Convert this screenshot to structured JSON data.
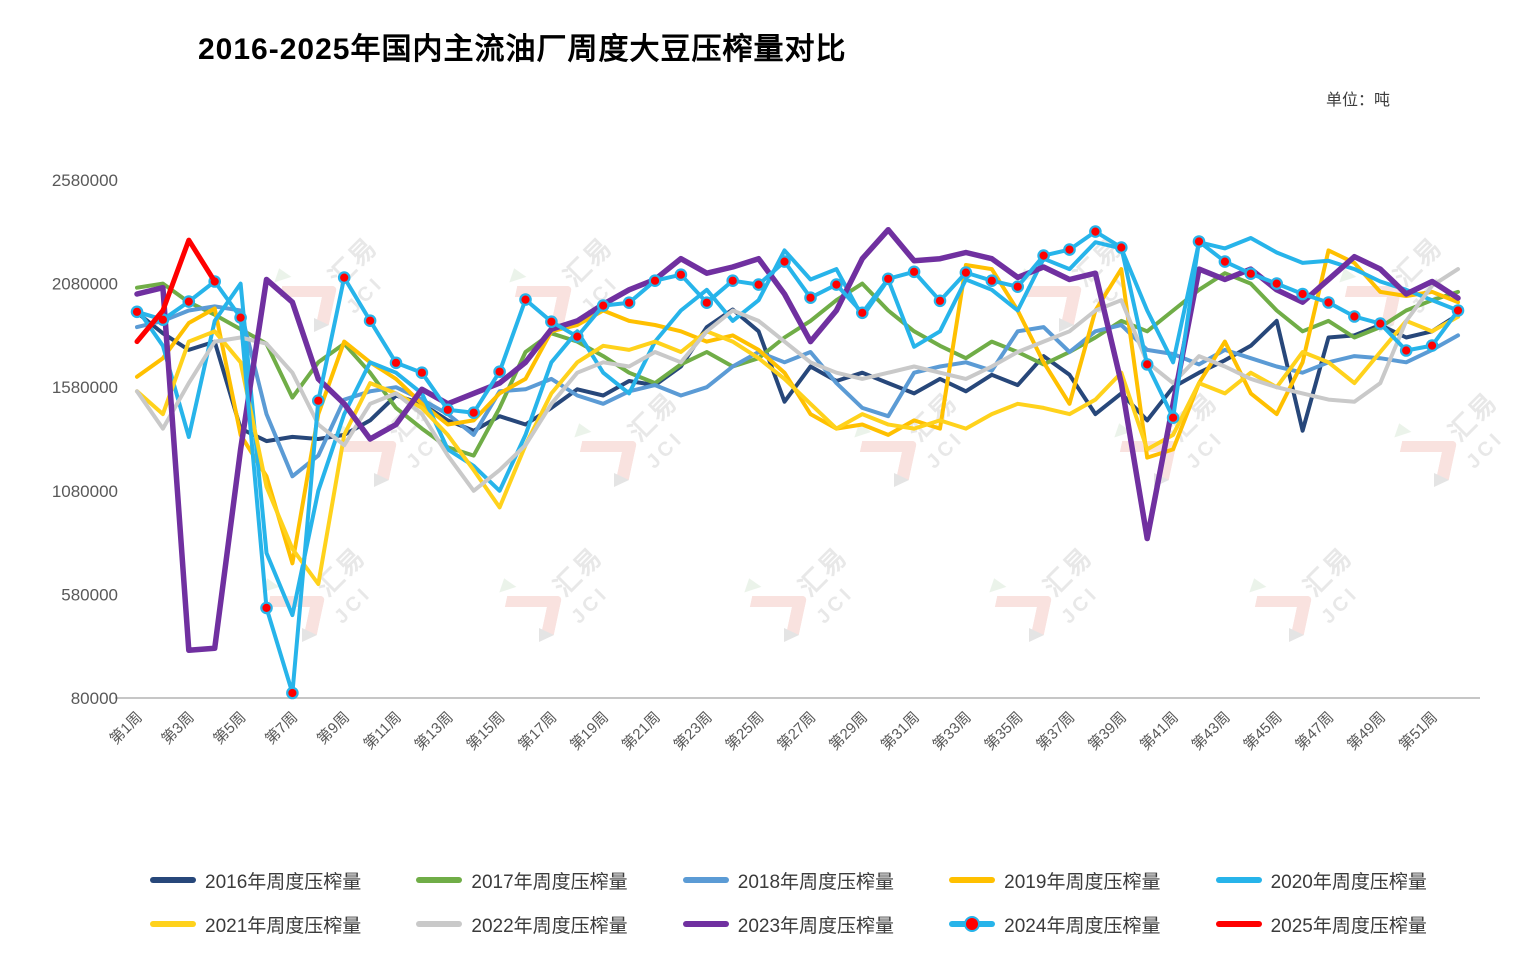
{
  "title": "2016-2025年国内主流油厂周度大豆压榨量对比",
  "unit_label": "单位：吨",
  "watermark": {
    "text_cn": "汇易",
    "text_en": "JCI"
  },
  "chart_data": {
    "type": "line",
    "title": "2016-2025年国内主流油厂周度大豆压榨量对比",
    "xlabel": "",
    "ylabel": "单位：吨",
    "ylim": [
      80000,
      2580000
    ],
    "y_ticks": [
      80000,
      580000,
      1080000,
      1580000,
      2080000,
      2580000
    ],
    "grid": false,
    "legend_position": "bottom",
    "weeks": 52,
    "x_tick_labels": [
      "第1周",
      "第3周",
      "第5周",
      "第7周",
      "第9周",
      "第11周",
      "第13周",
      "第15周",
      "第17周",
      "第19周",
      "第21周",
      "第23周",
      "第25周",
      "第27周",
      "第29周",
      "第31周",
      "第33周",
      "第35周",
      "第37周",
      "第39周",
      "第41周",
      "第43周",
      "第45周",
      "第47周",
      "第49周",
      "第51周"
    ],
    "series": [
      {
        "id": "2016",
        "name": "2016年周度压榨量",
        "color": "#27477A",
        "width": 4,
        "values": [
          1940000,
          1840000,
          1760000,
          1800000,
          1380000,
          1320000,
          1340000,
          1330000,
          1350000,
          1420000,
          1540000,
          1500000,
          1420000,
          1370000,
          1440000,
          1400000,
          1480000,
          1570000,
          1540000,
          1610000,
          1590000,
          1680000,
          1870000,
          1955000,
          1850000,
          1510000,
          1680000,
          1610000,
          1650000,
          1600000,
          1550000,
          1620000,
          1560000,
          1640000,
          1590000,
          1730000,
          1640000,
          1450000,
          1550000,
          1420000,
          1580000,
          1650000,
          1710000,
          1780000,
          1900000,
          1370000,
          1820000,
          1830000,
          1880000,
          1820000,
          1850000,
          1930000
        ]
      },
      {
        "id": "2017",
        "name": "2017年周度压榨量",
        "color": "#70AD47",
        "width": 4,
        "values": [
          2060000,
          2080000,
          1990000,
          1930000,
          1860000,
          1790000,
          1530000,
          1700000,
          1790000,
          1650000,
          1480000,
          1380000,
          1290000,
          1250000,
          1480000,
          1750000,
          1840000,
          1800000,
          1730000,
          1650000,
          1600000,
          1690000,
          1750000,
          1680000,
          1720000,
          1820000,
          1900000,
          2000000,
          2080000,
          1950000,
          1850000,
          1780000,
          1720000,
          1800000,
          1750000,
          1690000,
          1750000,
          1820000,
          1900000,
          1850000,
          1950000,
          2050000,
          2130000,
          2080000,
          1950000,
          1850000,
          1900000,
          1820000,
          1870000,
          1950000,
          2000000,
          2040000
        ]
      },
      {
        "id": "2018",
        "name": "2018年周度压榨量",
        "color": "#5B9BD5",
        "width": 4,
        "values": [
          1870000,
          1900000,
          1950000,
          1970000,
          1950000,
          1450000,
          1150000,
          1250000,
          1520000,
          1560000,
          1580000,
          1520000,
          1450000,
          1350000,
          1560000,
          1570000,
          1620000,
          1540000,
          1500000,
          1560000,
          1590000,
          1540000,
          1580000,
          1680000,
          1750000,
          1700000,
          1750000,
          1600000,
          1480000,
          1440000,
          1650000,
          1680000,
          1700000,
          1660000,
          1850000,
          1870000,
          1750000,
          1850000,
          1880000,
          1760000,
          1740000,
          1690000,
          1760000,
          1720000,
          1680000,
          1650000,
          1700000,
          1730000,
          1720000,
          1700000,
          1760000,
          1830000
        ]
      },
      {
        "id": "2019",
        "name": "2019年周度压榨量",
        "color": "#FFC000",
        "width": 4,
        "values": [
          1630000,
          1720000,
          1890000,
          1960000,
          1350000,
          1150000,
          730000,
          1450000,
          1800000,
          1700000,
          1620000,
          1500000,
          1400000,
          1420000,
          1550000,
          1620000,
          1850000,
          1880000,
          1950000,
          1900000,
          1880000,
          1850000,
          1800000,
          1830000,
          1760000,
          1650000,
          1450000,
          1380000,
          1400000,
          1350000,
          1420000,
          1380000,
          2170000,
          2150000,
          1950000,
          1700000,
          1500000,
          1950000,
          2150000,
          1240000,
          1280000,
          1600000,
          1800000,
          1550000,
          1450000,
          1700000,
          2240000,
          2180000,
          2040000,
          2020000,
          2040000,
          1990000
        ]
      },
      {
        "id": "2020",
        "name": "2020年周度压榨量",
        "color": "#27B4EA",
        "width": 4,
        "values": [
          1960000,
          1780000,
          1340000,
          1900000,
          2080000,
          780000,
          480000,
          1080000,
          1450000,
          1700000,
          1650000,
          1550000,
          1280000,
          1200000,
          1080000,
          1350000,
          1700000,
          1850000,
          1650000,
          1550000,
          1800000,
          1950000,
          2050000,
          1900000,
          2000000,
          2240000,
          2100000,
          2150000,
          1920000,
          2100000,
          1775000,
          1850000,
          2100000,
          2050000,
          1950000,
          2200000,
          2150000,
          2280000,
          2250000,
          1950000,
          1700000,
          2280000,
          2250000,
          2300000,
          2230000,
          2180000,
          2190000,
          2150000,
          2090000,
          2050000,
          2000000,
          1950000
        ]
      },
      {
        "id": "2021",
        "name": "2021年周度压榨量",
        "color": "#FFD21C",
        "width": 4,
        "values": [
          1560000,
          1450000,
          1800000,
          1850000,
          1700000,
          1100000,
          800000,
          630000,
          1350000,
          1600000,
          1550000,
          1480000,
          1350000,
          1180000,
          1000000,
          1300000,
          1550000,
          1700000,
          1780000,
          1760000,
          1800000,
          1750000,
          1850000,
          1800000,
          1720000,
          1620000,
          1500000,
          1380000,
          1450000,
          1400000,
          1380000,
          1420000,
          1380000,
          1450000,
          1500000,
          1480000,
          1450000,
          1520000,
          1650000,
          1280000,
          1350000,
          1600000,
          1550000,
          1650000,
          1580000,
          1750000,
          1700000,
          1600000,
          1750000,
          1900000,
          1850000,
          1920000
        ]
      },
      {
        "id": "2022",
        "name": "2022年周度压榨量",
        "color": "#C9C9C9",
        "width": 4,
        "values": [
          1560000,
          1380000,
          1600000,
          1800000,
          1820000,
          1790000,
          1650000,
          1400000,
          1300000,
          1500000,
          1550000,
          1450000,
          1250000,
          1080000,
          1180000,
          1300000,
          1500000,
          1650000,
          1700000,
          1680000,
          1750000,
          1700000,
          1850000,
          1950000,
          1900000,
          1800000,
          1700000,
          1650000,
          1620000,
          1650000,
          1680000,
          1650000,
          1620000,
          1680000,
          1750000,
          1800000,
          1850000,
          1950000,
          2000000,
          1700000,
          1600000,
          1730000,
          1680000,
          1620000,
          1580000,
          1550000,
          1520000,
          1510000,
          1600000,
          1900000,
          2070000,
          2150000
        ]
      },
      {
        "id": "2023",
        "name": "2023年周度压榨量",
        "color": "#7030A0",
        "width": 5.5,
        "values": [
          2030000,
          2060000,
          310000,
          320000,
          1280000,
          2100000,
          1990000,
          1620000,
          1500000,
          1330000,
          1400000,
          1570000,
          1500000,
          1550000,
          1600000,
          1700000,
          1860000,
          1900000,
          1980000,
          2050000,
          2100000,
          2200000,
          2130000,
          2160000,
          2200000,
          2030000,
          1800000,
          1950000,
          2200000,
          2340000,
          2190000,
          2200000,
          2230000,
          2200000,
          2110000,
          2160000,
          2100000,
          2130000,
          1600000,
          850000,
          1500000,
          2150000,
          2100000,
          2150000,
          2050000,
          1990000,
          2100000,
          2210000,
          2150000,
          2030000,
          2090000,
          2010000
        ]
      },
      {
        "id": "2024",
        "name": "2024年周度压榨量",
        "color": "#27B4EA",
        "width": 4,
        "marker": {
          "fill": "#FF0000",
          "stroke": "#27B4EA"
        },
        "values": [
          1944000,
          1906000,
          1993000,
          2090000,
          1916000,
          515000,
          104000,
          1515000,
          2109000,
          1901000,
          1698000,
          1650000,
          1471000,
          1457000,
          1655000,
          2003000,
          1896000,
          1824000,
          1974000,
          1988000,
          2094000,
          2123000,
          1988000,
          2094000,
          2075000,
          2186000,
          2012000,
          2075000,
          1939000,
          2103000,
          2137000,
          1997000,
          2133000,
          2094000,
          2065000,
          2215000,
          2244000,
          2331000,
          2254000,
          1690000,
          1433000,
          2283000,
          2186000,
          2128000,
          2080000,
          2030000,
          1989000,
          1921000,
          1887000,
          1757000,
          1781000,
          1950000
        ]
      },
      {
        "id": "2025",
        "name": "2025年周度压榨量",
        "color": "#FF0000",
        "width": 5,
        "values": [
          1800000,
          1950000,
          2290000,
          2090000
        ]
      }
    ]
  }
}
